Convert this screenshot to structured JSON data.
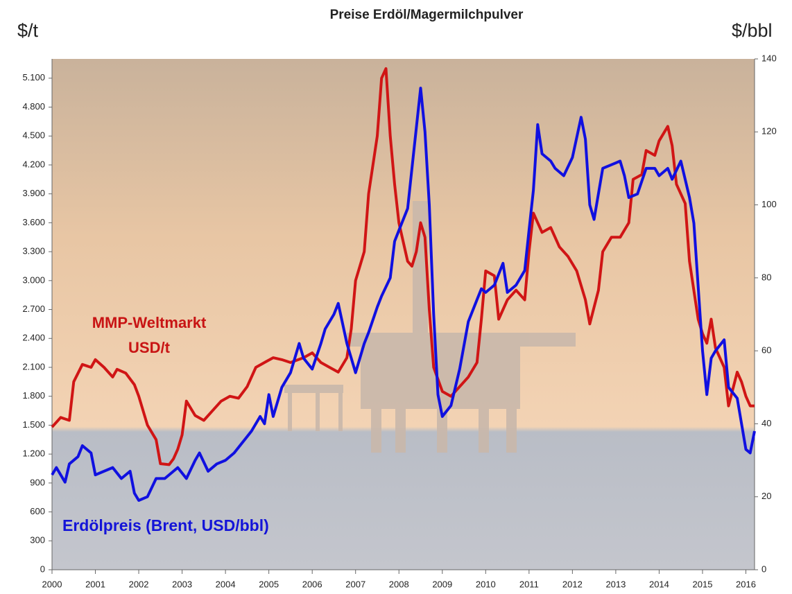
{
  "chart_data": {
    "type": "line",
    "title": "Preise Erdöl/Magermilchpulver",
    "y_label": "$/t",
    "y2_label": "$/bbl",
    "annotations": [
      [
        "MMP-Weltmarkt",
        "USD/t"
      ],
      [
        "Erdölpreis (Brent, USD/bbl)"
      ]
    ],
    "xlim": [
      2000,
      2016.2
    ],
    "xticks": [
      2000,
      2001,
      2002,
      2003,
      2004,
      2005,
      2006,
      2007,
      2008,
      2009,
      2010,
      2011,
      2012,
      2013,
      2014,
      2015,
      2016
    ],
    "ylim": [
      0,
      5300
    ],
    "yticks": [
      0,
      300,
      600,
      900,
      {
        "value": 1200,
        "label": "1.200"
      },
      {
        "value": 1500,
        "label": "1.500"
      },
      {
        "value": 1800,
        "label": "1.800"
      },
      {
        "value": 2100,
        "label": "2.100"
      },
      {
        "value": 2400,
        "label": "2.400"
      },
      {
        "value": 2700,
        "label": "2.700"
      },
      {
        "value": 3000,
        "label": "3.000"
      },
      {
        "value": 3300,
        "label": "3.300"
      },
      {
        "value": 3600,
        "label": "3.600"
      },
      {
        "value": 3900,
        "label": "3.900"
      },
      {
        "value": 4200,
        "label": "4.200"
      },
      {
        "value": 4500,
        "label": "4.500"
      },
      {
        "value": 4800,
        "label": "4.800"
      },
      {
        "value": 5100,
        "label": "5.100"
      }
    ],
    "y2lim": [
      0,
      140
    ],
    "y2ticks": [
      0,
      20,
      40,
      60,
      80,
      100,
      120,
      140
    ],
    "series": [
      {
        "color": "#d01515",
        "axis": "y",
        "x": [
          2000.0,
          2000.2,
          2000.4,
          2000.5,
          2000.7,
          2000.9,
          2001.0,
          2001.2,
          2001.4,
          2001.5,
          2001.7,
          2001.9,
          2002.0,
          2002.2,
          2002.4,
          2002.5,
          2002.7,
          2002.8,
          2002.9,
          2003.0,
          2003.1,
          2003.3,
          2003.5,
          2003.7,
          2003.9,
          2004.1,
          2004.3,
          2004.5,
          2004.7,
          2004.9,
          2005.1,
          2005.3,
          2005.5,
          2005.8,
          2006.0,
          2006.2,
          2006.4,
          2006.6,
          2006.8,
          2006.9,
          2007.0,
          2007.2,
          2007.3,
          2007.5,
          2007.6,
          2007.7,
          2007.8,
          2007.9,
          2008.0,
          2008.2,
          2008.3,
          2008.4,
          2008.5,
          2008.6,
          2008.7,
          2008.8,
          2009.0,
          2009.2,
          2009.4,
          2009.6,
          2009.8,
          2009.9,
          2010.0,
          2010.2,
          2010.3,
          2010.5,
          2010.7,
          2010.9,
          2011.0,
          2011.1,
          2011.3,
          2011.5,
          2011.7,
          2011.9,
          2012.1,
          2012.3,
          2012.4,
          2012.6,
          2012.7,
          2012.9,
          2013.1,
          2013.3,
          2013.4,
          2013.6,
          2013.7,
          2013.9,
          2014.0,
          2014.2,
          2014.3,
          2014.4,
          2014.6,
          2014.7,
          2014.9,
          2015.0,
          2015.1,
          2015.2,
          2015.3,
          2015.5,
          2015.6,
          2015.8,
          2015.9,
          2016.0,
          2016.1,
          2016.2
        ],
        "values": [
          1480,
          1580,
          1550,
          1950,
          2130,
          2100,
          2180,
          2100,
          2000,
          2080,
          2040,
          1920,
          1800,
          1500,
          1350,
          1100,
          1090,
          1150,
          1250,
          1400,
          1750,
          1600,
          1550,
          1650,
          1750,
          1800,
          1780,
          1900,
          2100,
          2150,
          2200,
          2180,
          2150,
          2200,
          2250,
          2150,
          2100,
          2050,
          2200,
          2500,
          3000,
          3300,
          3900,
          4500,
          5100,
          5200,
          4500,
          4000,
          3600,
          3200,
          3150,
          3300,
          3600,
          3450,
          2700,
          2100,
          1850,
          1800,
          1900,
          2000,
          2150,
          2600,
          3100,
          3050,
          2600,
          2800,
          2900,
          2800,
          3300,
          3700,
          3500,
          3550,
          3350,
          3250,
          3100,
          2800,
          2550,
          2900,
          3300,
          3450,
          3450,
          3600,
          4050,
          4100,
          4350,
          4300,
          4450,
          4600,
          4400,
          4000,
          3800,
          3200,
          2600,
          2450,
          2350,
          2600,
          2300,
          2100,
          1700,
          2050,
          1950,
          1800,
          1700,
          1700
        ]
      },
      {
        "color": "#1010e0",
        "axis": "y2",
        "x": [
          2000.0,
          2000.1,
          2000.3,
          2000.4,
          2000.6,
          2000.7,
          2000.9,
          2001.0,
          2001.2,
          2001.4,
          2001.6,
          2001.8,
          2001.9,
          2002.0,
          2002.2,
          2002.4,
          2002.6,
          2002.8,
          2002.9,
          2003.1,
          2003.3,
          2003.4,
          2003.6,
          2003.8,
          2004.0,
          2004.2,
          2004.4,
          2004.6,
          2004.8,
          2004.9,
          2005.0,
          2005.1,
          2005.3,
          2005.5,
          2005.7,
          2005.8,
          2006.0,
          2006.2,
          2006.3,
          2006.5,
          2006.6,
          2006.8,
          2006.9,
          2007.0,
          2007.2,
          2007.3,
          2007.5,
          2007.6,
          2007.8,
          2007.9,
          2008.0,
          2008.2,
          2008.3,
          2008.5,
          2008.6,
          2008.7,
          2008.8,
          2008.9,
          2009.0,
          2009.2,
          2009.4,
          2009.6,
          2009.8,
          2009.9,
          2010.0,
          2010.2,
          2010.4,
          2010.5,
          2010.7,
          2010.9,
          2011.0,
          2011.1,
          2011.2,
          2011.3,
          2011.5,
          2011.6,
          2011.8,
          2012.0,
          2012.2,
          2012.3,
          2012.4,
          2012.5,
          2012.7,
          2012.9,
          2013.1,
          2013.2,
          2013.3,
          2013.5,
          2013.7,
          2013.9,
          2014.0,
          2014.2,
          2014.3,
          2014.5,
          2014.7,
          2014.8,
          2015.0,
          2015.1,
          2015.2,
          2015.3,
          2015.5,
          2015.6,
          2015.8,
          2016.0,
          2016.1,
          2016.2
        ],
        "values": [
          26,
          28,
          24,
          29,
          31,
          34,
          32,
          26,
          27,
          28,
          25,
          27,
          21,
          19,
          20,
          25,
          25,
          27,
          28,
          25,
          30,
          32,
          27,
          29,
          30,
          32,
          35,
          38,
          42,
          40,
          48,
          42,
          50,
          54,
          62,
          58,
          55,
          62,
          66,
          70,
          73,
          62,
          58,
          54,
          62,
          65,
          72,
          75,
          80,
          90,
          93,
          99,
          110,
          132,
          120,
          100,
          70,
          48,
          42,
          45,
          55,
          68,
          74,
          77,
          76,
          78,
          84,
          76,
          78,
          82,
          93,
          104,
          122,
          114,
          112,
          110,
          108,
          113,
          124,
          118,
          100,
          96,
          110,
          111,
          112,
          108,
          102,
          103,
          110,
          110,
          108,
          110,
          107,
          112,
          102,
          95,
          60,
          48,
          58,
          60,
          63,
          50,
          47,
          33,
          32,
          38
        ]
      }
    ]
  }
}
